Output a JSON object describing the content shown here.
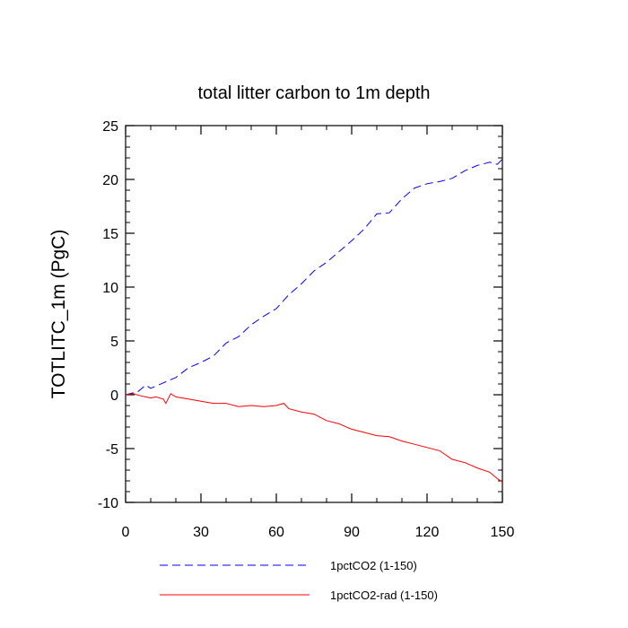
{
  "chart_data": {
    "type": "line",
    "title": "total litter carbon to 1m depth",
    "xlabel": "",
    "ylabel": "TOTLITC_1m  (PgC)",
    "xlim": [
      0,
      150
    ],
    "ylim": [
      -10,
      25
    ],
    "xticks": [
      0,
      30,
      60,
      90,
      120,
      150
    ],
    "yticks": [
      -10,
      -5,
      0,
      5,
      10,
      15,
      20,
      25
    ],
    "grid": false,
    "legend_position": "bottom",
    "series": [
      {
        "name": "1pctCO2 (1-150)",
        "color": "#0000ff",
        "dash": "dashed",
        "x": [
          0,
          5,
          8,
          10,
          15,
          20,
          25,
          30,
          35,
          40,
          45,
          50,
          55,
          60,
          65,
          70,
          75,
          80,
          85,
          90,
          95,
          100,
          105,
          110,
          115,
          120,
          125,
          130,
          135,
          140,
          145,
          148,
          150
        ],
        "y": [
          0,
          0.3,
          0.9,
          0.6,
          1.1,
          1.6,
          2.5,
          3.0,
          3.6,
          4.8,
          5.4,
          6.5,
          7.3,
          8.0,
          9.3,
          10.3,
          11.5,
          12.3,
          13.3,
          14.3,
          15.4,
          16.8,
          16.9,
          18.2,
          19.2,
          19.6,
          19.8,
          20.1,
          20.8,
          21.3,
          21.6,
          21.4,
          21.9
        ]
      },
      {
        "name": "1pctCO2-rad (1-150)",
        "color": "#ff0000",
        "dash": "solid",
        "x": [
          0,
          3,
          6,
          8,
          10,
          12,
          15,
          16,
          18,
          20,
          25,
          30,
          35,
          40,
          45,
          50,
          55,
          60,
          63,
          65,
          70,
          75,
          80,
          85,
          90,
          95,
          100,
          105,
          110,
          115,
          120,
          125,
          130,
          135,
          140,
          145,
          148,
          150
        ],
        "y": [
          0,
          0.1,
          -0.1,
          -0.2,
          -0.3,
          -0.2,
          -0.4,
          -0.8,
          0.1,
          -0.2,
          -0.4,
          -0.6,
          -0.8,
          -0.8,
          -1.1,
          -1.0,
          -1.1,
          -1.0,
          -0.8,
          -1.3,
          -1.6,
          -1.8,
          -2.4,
          -2.7,
          -3.2,
          -3.5,
          -3.8,
          -3.9,
          -4.3,
          -4.6,
          -4.9,
          -5.2,
          -6.0,
          -6.3,
          -6.8,
          -7.2,
          -7.8,
          -8.1
        ]
      }
    ]
  }
}
